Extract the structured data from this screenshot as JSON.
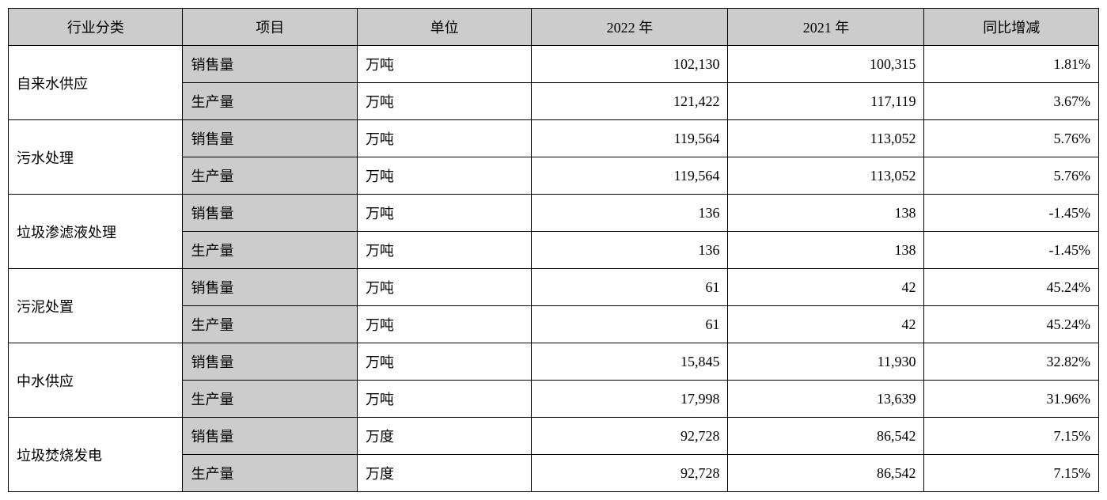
{
  "table": {
    "headers": {
      "category": "行业分类",
      "item": "项目",
      "unit": "单位",
      "year2022": "2022 年",
      "year2021": "2021 年",
      "change": "同比增减"
    },
    "styling": {
      "header_bg": "#cccccc",
      "item_bg": "#cccccc",
      "cell_bg": "#ffffff",
      "border_color": "#000000",
      "font_family": "SimSun",
      "font_size": 18,
      "column_widths_pct": [
        16,
        16,
        16,
        18,
        18,
        16
      ],
      "num_align": "right",
      "text_align": "left",
      "header_align": "center"
    },
    "categories": [
      {
        "name": "自来水供应",
        "rows": [
          {
            "item": "销售量",
            "unit": "万吨",
            "year2022": "102,130",
            "year2021": "100,315",
            "change": "1.81%"
          },
          {
            "item": "生产量",
            "unit": "万吨",
            "year2022": "121,422",
            "year2021": "117,119",
            "change": "3.67%"
          }
        ]
      },
      {
        "name": "污水处理",
        "rows": [
          {
            "item": "销售量",
            "unit": "万吨",
            "year2022": "119,564",
            "year2021": "113,052",
            "change": "5.76%"
          },
          {
            "item": "生产量",
            "unit": "万吨",
            "year2022": "119,564",
            "year2021": "113,052",
            "change": "5.76%"
          }
        ]
      },
      {
        "name": "垃圾渗滤液处理",
        "rows": [
          {
            "item": "销售量",
            "unit": "万吨",
            "year2022": "136",
            "year2021": "138",
            "change": "-1.45%"
          },
          {
            "item": "生产量",
            "unit": "万吨",
            "year2022": "136",
            "year2021": "138",
            "change": "-1.45%"
          }
        ]
      },
      {
        "name": "污泥处置",
        "rows": [
          {
            "item": "销售量",
            "unit": "万吨",
            "year2022": "61",
            "year2021": "42",
            "change": "45.24%"
          },
          {
            "item": "生产量",
            "unit": "万吨",
            "year2022": "61",
            "year2021": "42",
            "change": "45.24%"
          }
        ]
      },
      {
        "name": "中水供应",
        "rows": [
          {
            "item": "销售量",
            "unit": "万吨",
            "year2022": "15,845",
            "year2021": "11,930",
            "change": "32.82%"
          },
          {
            "item": "生产量",
            "unit": "万吨",
            "year2022": "17,998",
            "year2021": "13,639",
            "change": "31.96%"
          }
        ]
      },
      {
        "name": "垃圾焚烧发电",
        "rows": [
          {
            "item": "销售量",
            "unit": "万度",
            "year2022": "92,728",
            "year2021": "86,542",
            "change": "7.15%"
          },
          {
            "item": "生产量",
            "unit": "万度",
            "year2022": "92,728",
            "year2021": "86,542",
            "change": "7.15%"
          }
        ]
      }
    ]
  }
}
